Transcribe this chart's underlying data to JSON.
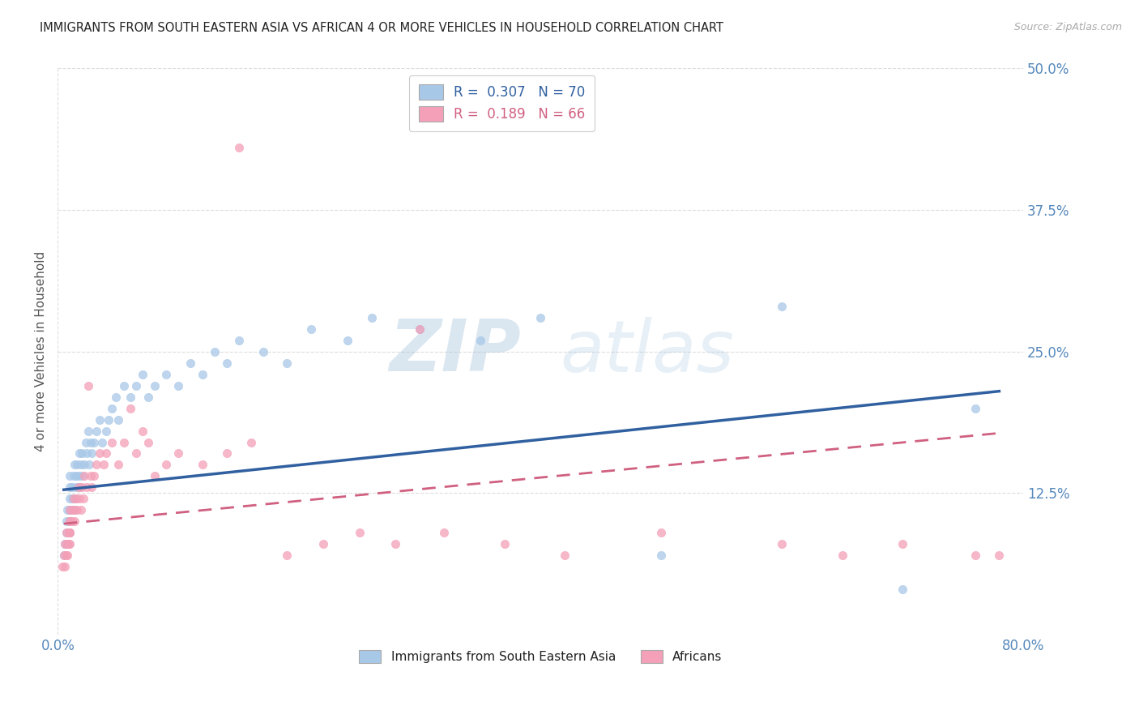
{
  "title": "IMMIGRANTS FROM SOUTH EASTERN ASIA VS AFRICAN 4 OR MORE VEHICLES IN HOUSEHOLD CORRELATION CHART",
  "source": "Source: ZipAtlas.com",
  "ylabel": "4 or more Vehicles in Household",
  "xlim": [
    0.0,
    0.8
  ],
  "ylim": [
    0.0,
    0.5
  ],
  "xticks": [
    0.0,
    0.8
  ],
  "xtick_labels": [
    "0.0%",
    "80.0%"
  ],
  "yticks": [
    0.0,
    0.125,
    0.25,
    0.375,
    0.5
  ],
  "ytick_labels": [
    "",
    "12.5%",
    "25.0%",
    "37.5%",
    "50.0%"
  ],
  "blue_R": 0.307,
  "blue_N": 70,
  "pink_R": 0.189,
  "pink_N": 66,
  "blue_color": "#a8c8e8",
  "pink_color": "#f4a0b8",
  "blue_line_color": "#3060a0",
  "pink_line_color": "#d06080",
  "legend_label_blue": "Immigrants from South Eastern Asia",
  "legend_label_pink": "Africans",
  "blue_trend_x0": 0.005,
  "blue_trend_x1": 0.78,
  "blue_trend_y0": 0.128,
  "blue_trend_y1": 0.215,
  "pink_trend_x0": 0.005,
  "pink_trend_x1": 0.78,
  "pink_trend_y0": 0.098,
  "pink_trend_y1": 0.178,
  "blue_scatter_x": [
    0.005,
    0.006,
    0.007,
    0.007,
    0.008,
    0.008,
    0.009,
    0.01,
    0.01,
    0.01,
    0.01,
    0.01,
    0.01,
    0.01,
    0.012,
    0.012,
    0.013,
    0.013,
    0.014,
    0.014,
    0.015,
    0.015,
    0.016,
    0.017,
    0.018,
    0.018,
    0.019,
    0.02,
    0.02,
    0.022,
    0.023,
    0.024,
    0.025,
    0.026,
    0.027,
    0.028,
    0.03,
    0.032,
    0.035,
    0.037,
    0.04,
    0.042,
    0.045,
    0.048,
    0.05,
    0.055,
    0.06,
    0.065,
    0.07,
    0.075,
    0.08,
    0.09,
    0.1,
    0.11,
    0.12,
    0.13,
    0.14,
    0.15,
    0.17,
    0.19,
    0.21,
    0.24,
    0.26,
    0.3,
    0.35,
    0.4,
    0.5,
    0.6,
    0.7,
    0.76
  ],
  "blue_scatter_y": [
    0.07,
    0.08,
    0.09,
    0.1,
    0.08,
    0.11,
    0.09,
    0.12,
    0.1,
    0.13,
    0.11,
    0.14,
    0.09,
    0.1,
    0.12,
    0.13,
    0.11,
    0.14,
    0.12,
    0.15,
    0.13,
    0.14,
    0.15,
    0.14,
    0.16,
    0.13,
    0.15,
    0.14,
    0.16,
    0.15,
    0.17,
    0.16,
    0.18,
    0.15,
    0.17,
    0.16,
    0.17,
    0.18,
    0.19,
    0.17,
    0.18,
    0.19,
    0.2,
    0.21,
    0.19,
    0.22,
    0.21,
    0.22,
    0.23,
    0.21,
    0.22,
    0.23,
    0.22,
    0.24,
    0.23,
    0.25,
    0.24,
    0.26,
    0.25,
    0.24,
    0.27,
    0.26,
    0.28,
    0.27,
    0.26,
    0.28,
    0.07,
    0.29,
    0.04,
    0.2
  ],
  "pink_scatter_x": [
    0.004,
    0.005,
    0.006,
    0.006,
    0.007,
    0.007,
    0.008,
    0.008,
    0.009,
    0.009,
    0.01,
    0.01,
    0.01,
    0.01,
    0.01,
    0.01,
    0.012,
    0.012,
    0.013,
    0.014,
    0.014,
    0.015,
    0.016,
    0.017,
    0.018,
    0.019,
    0.02,
    0.021,
    0.022,
    0.024,
    0.025,
    0.027,
    0.028,
    0.03,
    0.032,
    0.035,
    0.038,
    0.04,
    0.045,
    0.05,
    0.055,
    0.06,
    0.065,
    0.07,
    0.075,
    0.08,
    0.09,
    0.1,
    0.12,
    0.14,
    0.16,
    0.19,
    0.22,
    0.25,
    0.28,
    0.32,
    0.37,
    0.42,
    0.5,
    0.6,
    0.7,
    0.76,
    0.78,
    0.15,
    0.3,
    0.65
  ],
  "pink_scatter_y": [
    0.06,
    0.07,
    0.06,
    0.08,
    0.07,
    0.09,
    0.08,
    0.07,
    0.09,
    0.08,
    0.1,
    0.09,
    0.11,
    0.08,
    0.1,
    0.09,
    0.11,
    0.1,
    0.12,
    0.11,
    0.1,
    0.12,
    0.11,
    0.13,
    0.12,
    0.11,
    0.13,
    0.12,
    0.14,
    0.13,
    0.22,
    0.14,
    0.13,
    0.14,
    0.15,
    0.16,
    0.15,
    0.16,
    0.17,
    0.15,
    0.17,
    0.2,
    0.16,
    0.18,
    0.17,
    0.14,
    0.15,
    0.16,
    0.15,
    0.16,
    0.17,
    0.07,
    0.08,
    0.09,
    0.08,
    0.09,
    0.08,
    0.07,
    0.09,
    0.08,
    0.08,
    0.07,
    0.07,
    0.43,
    0.27,
    0.07
  ],
  "background_color": "#ffffff",
  "title_color": "#222222",
  "axis_label_color": "#555555",
  "tick_color": "#5588bb",
  "grid_color": "#dddddd"
}
